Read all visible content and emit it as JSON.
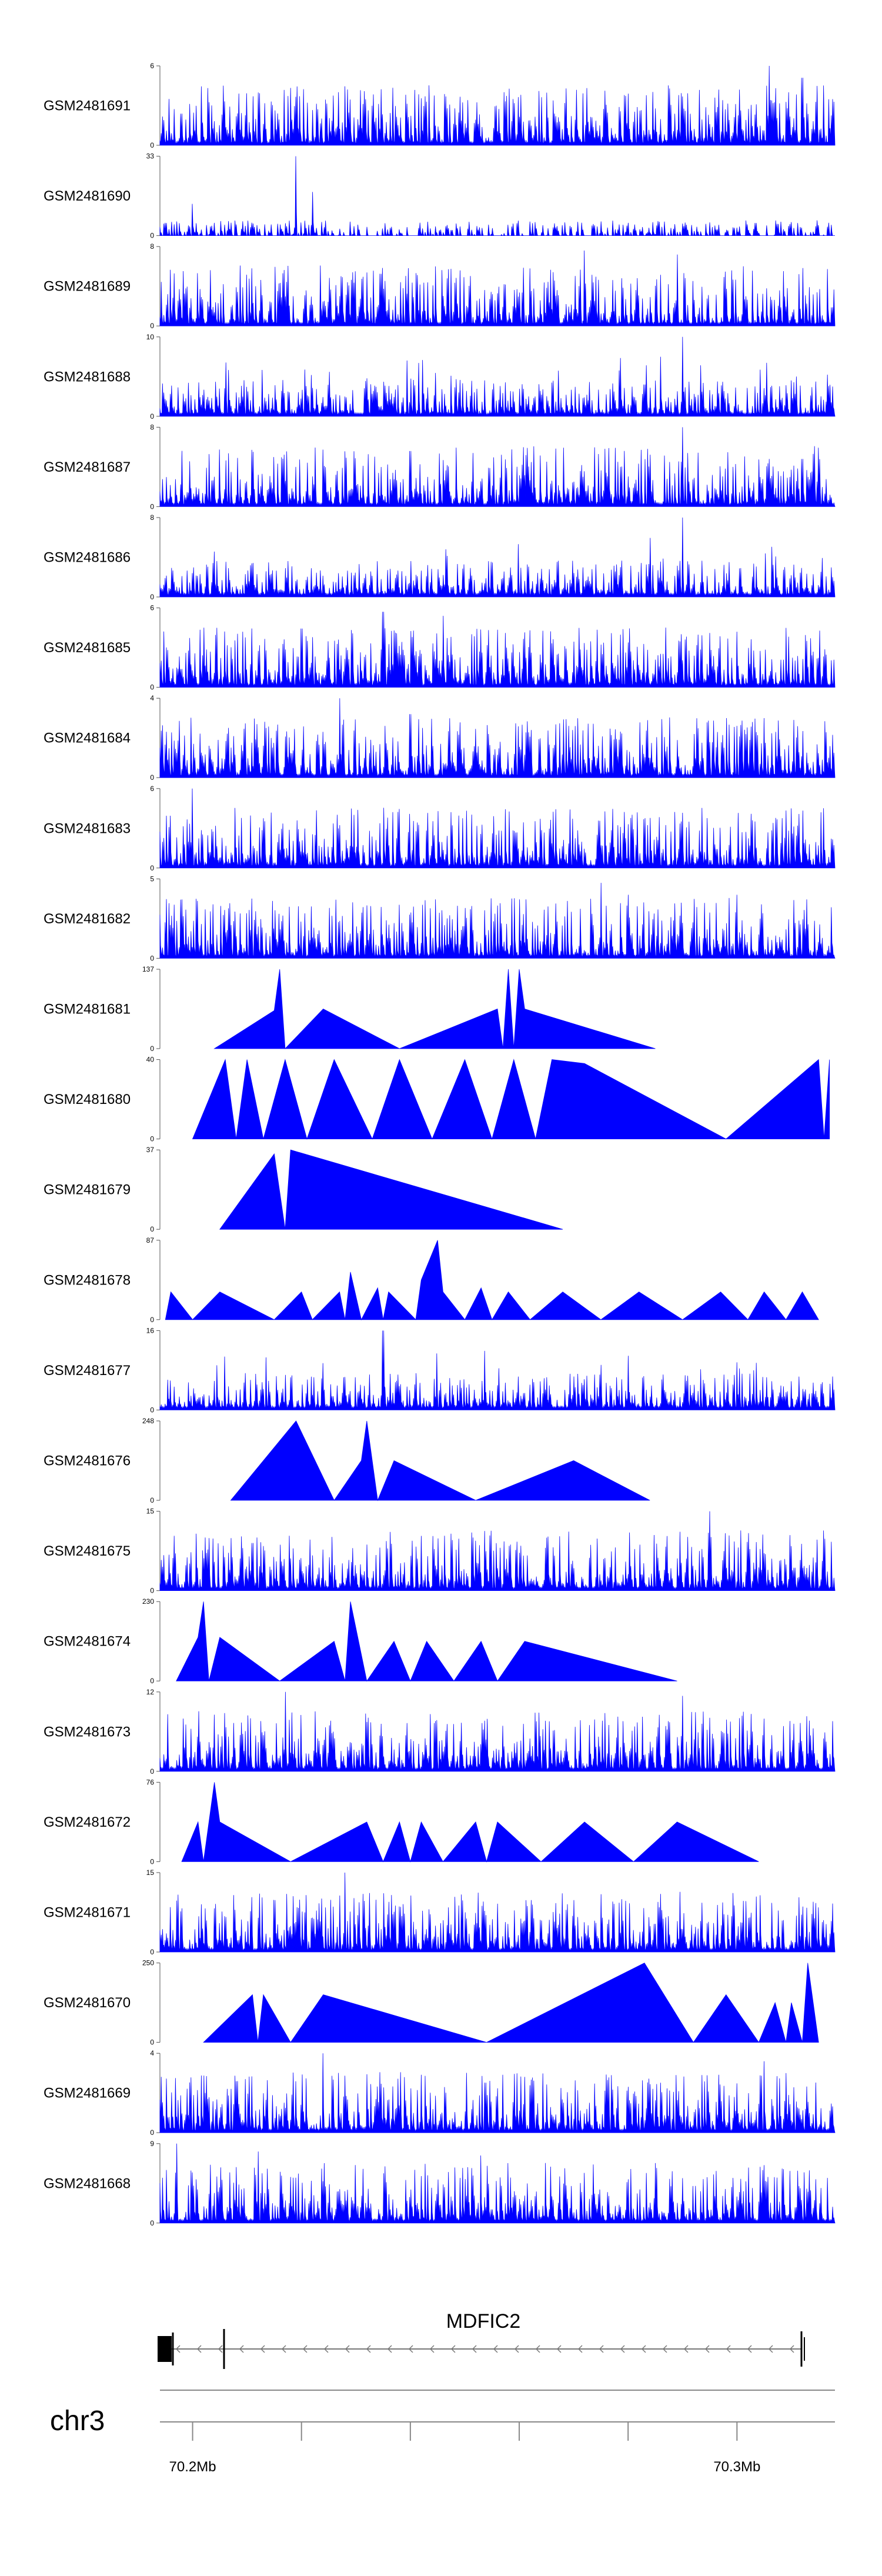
{
  "chart_data": {
    "type": "area",
    "title": "",
    "region": {
      "chrom": "chr3",
      "start_mb": 70.194,
      "end_mb": 70.318
    },
    "fill_color": "#0000ff",
    "tracks": [
      {
        "name": "GSM2481691",
        "ymax": 6,
        "ymin": 0,
        "pattern": "dense",
        "spikes": [
          [
            70.306,
            1.0
          ],
          [
            70.312,
            0.85
          ],
          [
            70.296,
            0.6
          ]
        ]
      },
      {
        "name": "GSM2481690",
        "ymax": 33,
        "ymin": 0,
        "pattern": "sparse",
        "gaps": 0.018,
        "spikes": [
          [
            70.219,
            1.0
          ],
          [
            70.222,
            0.55
          ],
          [
            70.2,
            0.4
          ]
        ]
      },
      {
        "name": "GSM2481689",
        "ymax": 8,
        "ymin": 0,
        "pattern": "dense",
        "spikes": [
          [
            70.272,
            0.95
          ],
          [
            70.289,
            0.9
          ],
          [
            70.299,
            0.7
          ]
        ]
      },
      {
        "name": "GSM2481688",
        "ymax": 10,
        "ymin": 0,
        "pattern": "dense",
        "low": true,
        "spikes": [
          [
            70.29,
            1.0
          ],
          [
            70.311,
            0.5
          ],
          [
            70.283,
            0.4
          ]
        ]
      },
      {
        "name": "GSM2481687",
        "ymax": 8,
        "ymin": 0,
        "pattern": "dense",
        "spikes": [
          [
            70.29,
            1.0
          ],
          [
            70.24,
            0.7
          ],
          [
            70.312,
            0.6
          ]
        ]
      },
      {
        "name": "GSM2481686",
        "ymax": 8,
        "ymin": 0,
        "pattern": "dense",
        "low": true,
        "spikes": [
          [
            70.29,
            1.0
          ],
          [
            70.245,
            0.35
          ],
          [
            70.2,
            0.3
          ]
        ]
      },
      {
        "name": "GSM2481685",
        "ymax": 6,
        "ymin": 0,
        "pattern": "dense",
        "spikes": [
          [
            70.235,
            0.95
          ],
          [
            70.246,
            0.9
          ],
          [
            70.3,
            0.7
          ]
        ]
      },
      {
        "name": "GSM2481684",
        "ymax": 4,
        "ymin": 0,
        "pattern": "dense",
        "spikes": [
          [
            70.227,
            1.0
          ],
          [
            70.24,
            0.8
          ],
          [
            70.305,
            0.75
          ]
        ]
      },
      {
        "name": "GSM2481683",
        "ymax": 6,
        "ymin": 0,
        "pattern": "dense",
        "spikes": [
          [
            70.2,
            1.0
          ],
          [
            70.31,
            0.75
          ],
          [
            70.28,
            0.55
          ]
        ]
      },
      {
        "name": "GSM2481682",
        "ymax": 5,
        "ymin": 0,
        "pattern": "dense",
        "spikes": [
          [
            70.275,
            0.95
          ],
          [
            70.28,
            0.8
          ],
          [
            70.3,
            0.8
          ]
        ]
      },
      {
        "name": "GSM2481681",
        "ymax": 137,
        "ymin": 0,
        "pattern": "tri",
        "points": [
          [
            70.204,
            0
          ],
          [
            70.215,
            0.48
          ],
          [
            70.216,
            1.0
          ],
          [
            70.217,
            0
          ],
          [
            70.224,
            0.5
          ],
          [
            70.238,
            0
          ],
          [
            70.256,
            0.5
          ],
          [
            70.257,
            0.0
          ],
          [
            70.258,
            1.0
          ],
          [
            70.259,
            0
          ],
          [
            70.26,
            1.0
          ],
          [
            70.261,
            0.5
          ],
          [
            70.285,
            0
          ]
        ]
      },
      {
        "name": "GSM2481680",
        "ymax": 40,
        "ymin": 0,
        "pattern": "tri",
        "points": [
          [
            70.2,
            0
          ],
          [
            70.206,
            1.0
          ],
          [
            70.208,
            0
          ],
          [
            70.21,
            1.0
          ],
          [
            70.213,
            0
          ],
          [
            70.217,
            1.0
          ],
          [
            70.221,
            0
          ],
          [
            70.226,
            1.0
          ],
          [
            70.233,
            0
          ],
          [
            70.238,
            1.0
          ],
          [
            70.244,
            0
          ],
          [
            70.25,
            1.0
          ],
          [
            70.255,
            0
          ],
          [
            70.259,
            1.0
          ],
          [
            70.263,
            0
          ],
          [
            70.266,
            1.0
          ],
          [
            70.272,
            0.95
          ],
          [
            70.298,
            0
          ],
          [
            70.315,
            1.0
          ],
          [
            70.316,
            0
          ],
          [
            70.317,
            1.0
          ]
        ]
      },
      {
        "name": "GSM2481679",
        "ymax": 37,
        "ymin": 0,
        "pattern": "tri",
        "points": [
          [
            70.205,
            0
          ],
          [
            70.215,
            0.95
          ],
          [
            70.217,
            0
          ],
          [
            70.218,
            1.0
          ],
          [
            70.268,
            0
          ]
        ]
      },
      {
        "name": "GSM2481678",
        "ymax": 87,
        "ymin": 0,
        "pattern": "tri",
        "points": [
          [
            70.195,
            0
          ],
          [
            70.196,
            0.35
          ],
          [
            70.2,
            0
          ],
          [
            70.205,
            0.35
          ],
          [
            70.215,
            0
          ],
          [
            70.22,
            0.35
          ],
          [
            70.222,
            0
          ],
          [
            70.227,
            0.35
          ],
          [
            70.228,
            0
          ],
          [
            70.229,
            0.6
          ],
          [
            70.231,
            0
          ],
          [
            70.234,
            0.4
          ],
          [
            70.235,
            0
          ],
          [
            70.236,
            0.35
          ],
          [
            70.241,
            0
          ],
          [
            70.242,
            0.5
          ],
          [
            70.245,
            1.0
          ],
          [
            70.246,
            0.35
          ],
          [
            70.25,
            0
          ],
          [
            70.253,
            0.4
          ],
          [
            70.255,
            0
          ],
          [
            70.258,
            0.35
          ],
          [
            70.262,
            0
          ],
          [
            70.268,
            0.35
          ],
          [
            70.275,
            0
          ],
          [
            70.282,
            0.35
          ],
          [
            70.29,
            0
          ],
          [
            70.297,
            0.35
          ],
          [
            70.302,
            0
          ],
          [
            70.305,
            0.35
          ],
          [
            70.309,
            0
          ],
          [
            70.312,
            0.35
          ],
          [
            70.315,
            0
          ]
        ]
      },
      {
        "name": "GSM2481677",
        "ymax": 16,
        "ymin": 0,
        "pattern": "dense",
        "low": true,
        "spikes": [
          [
            70.235,
            1.0
          ],
          [
            70.3,
            0.6
          ],
          [
            70.303,
            0.5
          ]
        ]
      },
      {
        "name": "GSM2481676",
        "ymax": 248,
        "ymin": 0,
        "pattern": "tri",
        "points": [
          [
            70.207,
            0
          ],
          [
            70.219,
            1.0
          ],
          [
            70.226,
            0
          ],
          [
            70.231,
            0.5
          ],
          [
            70.232,
            1.0
          ],
          [
            70.234,
            0
          ],
          [
            70.237,
            0.5
          ],
          [
            70.252,
            0
          ],
          [
            70.27,
            0.5
          ],
          [
            70.284,
            0
          ]
        ]
      },
      {
        "name": "GSM2481675",
        "ymax": 15,
        "ymin": 0,
        "pattern": "dense",
        "spikes": [
          [
            70.295,
            1.0
          ],
          [
            70.211,
            0.6
          ],
          [
            70.293,
            0.5
          ]
        ]
      },
      {
        "name": "GSM2481674",
        "ymax": 230,
        "ymin": 0,
        "pattern": "tri",
        "points": [
          [
            70.197,
            0
          ],
          [
            70.201,
            0.55
          ],
          [
            70.202,
            1.0
          ],
          [
            70.203,
            0
          ],
          [
            70.205,
            0.55
          ],
          [
            70.216,
            0
          ],
          [
            70.226,
            0.5
          ],
          [
            70.228,
            0
          ],
          [
            70.229,
            1.0
          ],
          [
            70.232,
            0
          ],
          [
            70.237,
            0.5
          ],
          [
            70.24,
            0
          ],
          [
            70.243,
            0.5
          ],
          [
            70.248,
            0
          ],
          [
            70.253,
            0.5
          ],
          [
            70.256,
            0
          ],
          [
            70.261,
            0.5
          ],
          [
            70.289,
            0
          ]
        ]
      },
      {
        "name": "GSM2481673",
        "ymax": 12,
        "ymin": 0,
        "pattern": "dense",
        "spikes": [
          [
            70.217,
            1.0
          ],
          [
            70.29,
            0.95
          ],
          [
            70.301,
            0.7
          ]
        ]
      },
      {
        "name": "GSM2481672",
        "ymax": 76,
        "ymin": 0,
        "pattern": "tri",
        "points": [
          [
            70.198,
            0
          ],
          [
            70.201,
            0.5
          ],
          [
            70.202,
            0
          ],
          [
            70.204,
            1.0
          ],
          [
            70.205,
            0.5
          ],
          [
            70.218,
            0
          ],
          [
            70.232,
            0.5
          ],
          [
            70.235,
            0
          ],
          [
            70.238,
            0.5
          ],
          [
            70.24,
            0
          ],
          [
            70.242,
            0.5
          ],
          [
            70.246,
            0
          ],
          [
            70.252,
            0.5
          ],
          [
            70.254,
            0
          ],
          [
            70.256,
            0.5
          ],
          [
            70.264,
            0
          ],
          [
            70.272,
            0.5
          ],
          [
            70.281,
            0
          ],
          [
            70.289,
            0.5
          ],
          [
            70.304,
            0
          ]
        ]
      },
      {
        "name": "GSM2481671",
        "ymax": 15,
        "ymin": 0,
        "pattern": "dense",
        "spikes": [
          [
            70.228,
            1.0
          ],
          [
            70.198,
            0.55
          ],
          [
            70.25,
            0.5
          ]
        ]
      },
      {
        "name": "GSM2481670",
        "ymax": 250,
        "ymin": 0,
        "pattern": "tri",
        "points": [
          [
            70.202,
            0
          ],
          [
            70.211,
            0.6
          ],
          [
            70.212,
            0.0
          ],
          [
            70.213,
            0.6
          ],
          [
            70.218,
            0
          ],
          [
            70.224,
            0.6
          ],
          [
            70.254,
            0
          ],
          [
            70.283,
            1.0
          ],
          [
            70.292,
            0
          ],
          [
            70.298,
            0.6
          ],
          [
            70.304,
            0
          ],
          [
            70.307,
            0.5
          ],
          [
            70.309,
            0
          ],
          [
            70.31,
            0.5
          ],
          [
            70.312,
            0
          ],
          [
            70.313,
            1.0
          ],
          [
            70.315,
            0
          ]
        ]
      },
      {
        "name": "GSM2481669",
        "ymax": 4,
        "ymin": 0,
        "pattern": "dense",
        "spikes": [
          [
            70.224,
            1.0
          ],
          [
            70.305,
            0.9
          ],
          [
            70.309,
            0.75
          ]
        ]
      },
      {
        "name": "GSM2481668",
        "ymax": 9,
        "ymin": 0,
        "pattern": "dense",
        "spikes": [
          [
            70.197,
            1.0
          ],
          [
            70.212,
            0.9
          ],
          [
            70.253,
            0.85
          ]
        ]
      }
    ],
    "gene": {
      "name": "MDFIC2",
      "start_mb": 70.194,
      "end_mb": 70.312,
      "strand": "-"
    },
    "chromosome_label": "chr3",
    "axis": {
      "ticks_mb": [
        70.2,
        70.22,
        70.24,
        70.26,
        70.28,
        70.3
      ],
      "labeled_ticks": [
        {
          "mb": 70.2,
          "label": "70.2Mb"
        },
        {
          "mb": 70.3,
          "label": "70.3Mb"
        }
      ]
    }
  }
}
